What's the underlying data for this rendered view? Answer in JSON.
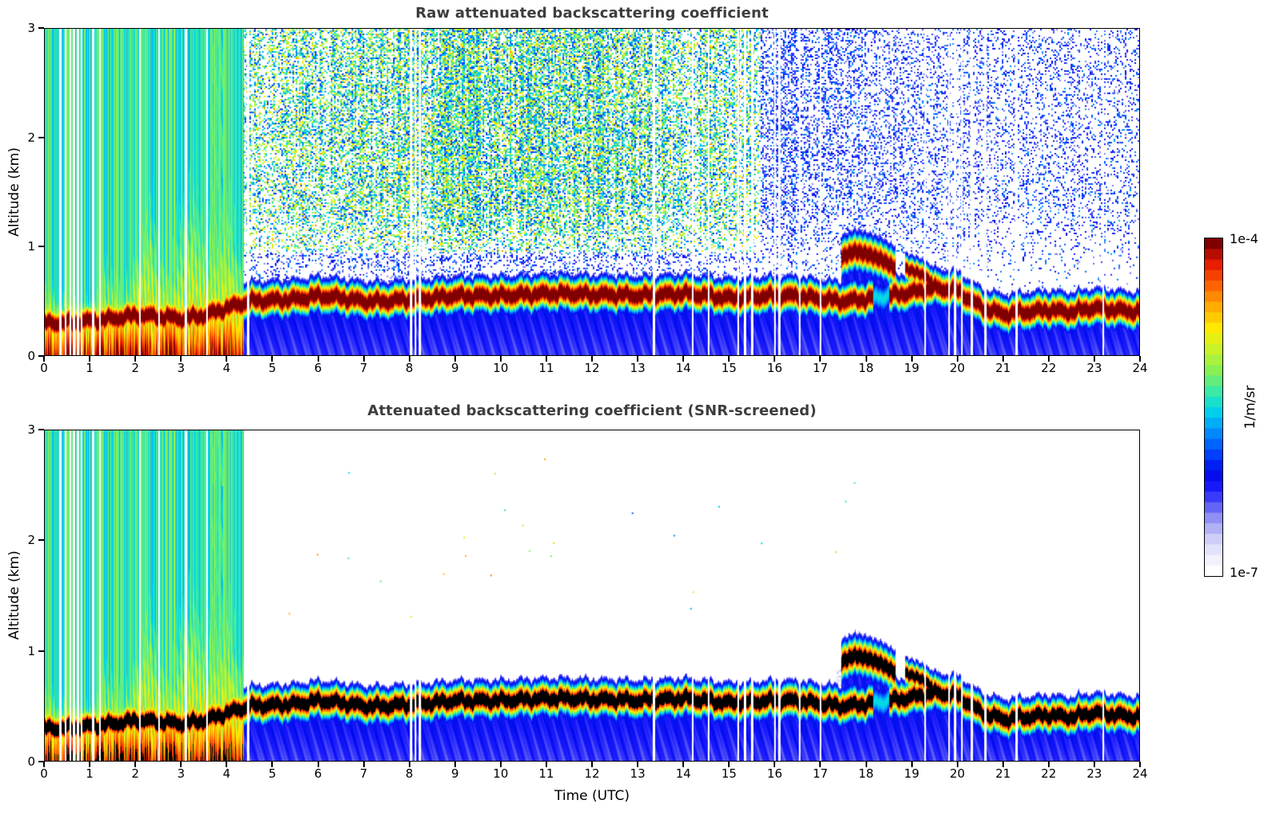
{
  "figure": {
    "top_panel": {
      "title": "Raw attenuated backscattering coefficient",
      "ylabel": "Altitude (km)"
    },
    "bottom_panel": {
      "title": "Attenuated backscattering coefficient (SNR-screened)",
      "ylabel": "Altitude (km)",
      "xlabel": "Time (UTC)"
    },
    "colorbar": {
      "max_label": "1e-4",
      "min_label": "1e-7",
      "unit": "1/m/sr"
    }
  },
  "chart_data": {
    "type": "heatmap",
    "panels": [
      {
        "id": "raw",
        "title": "Raw attenuated backscattering coefficient",
        "screened": false
      },
      {
        "id": "screened",
        "title": "Attenuated backscattering coefficient (SNR-screened)",
        "screened": true
      }
    ],
    "xlabel": "Time (UTC)",
    "ylabel": "Altitude (km)",
    "x_range": [
      0,
      24
    ],
    "y_range": [
      0,
      3
    ],
    "x_ticks": [
      0,
      1,
      2,
      3,
      4,
      5,
      6,
      7,
      8,
      9,
      10,
      11,
      12,
      13,
      14,
      15,
      16,
      17,
      18,
      19,
      20,
      21,
      22,
      23,
      24
    ],
    "y_ticks": [
      0,
      1,
      2,
      3
    ],
    "colorbar": {
      "min_value": 1e-07,
      "max_value": 0.0001,
      "unit": "1/m/sr",
      "steps": 32,
      "min_label": "1e-7",
      "max_label": "1e-4"
    },
    "colormap_stops": [
      [
        0.0,
        255,
        255,
        255
      ],
      [
        0.05,
        236,
        236,
        252
      ],
      [
        0.1,
        204,
        204,
        248
      ],
      [
        0.15,
        158,
        158,
        246
      ],
      [
        0.2,
        92,
        92,
        246
      ],
      [
        0.25,
        28,
        28,
        255
      ],
      [
        0.3,
        0,
        10,
        235
      ],
      [
        0.36,
        0,
        70,
        255
      ],
      [
        0.43,
        0,
        150,
        255
      ],
      [
        0.49,
        0,
        215,
        235
      ],
      [
        0.55,
        60,
        235,
        165
      ],
      [
        0.61,
        135,
        240,
        85
      ],
      [
        0.67,
        195,
        245,
        45
      ],
      [
        0.74,
        255,
        235,
        0
      ],
      [
        0.81,
        255,
        170,
        0
      ],
      [
        0.88,
        255,
        90,
        0
      ],
      [
        0.94,
        232,
        25,
        0
      ],
      [
        1.0,
        128,
        0,
        0
      ]
    ],
    "features": {
      "band_center_km_step_h": 0.5,
      "band_center_km": [
        0.3,
        0.3,
        0.32,
        0.34,
        0.37,
        0.36,
        0.34,
        0.37,
        0.44,
        0.5,
        0.51,
        0.52,
        0.55,
        0.53,
        0.5,
        0.5,
        0.52,
        0.53,
        0.55,
        0.55,
        0.55,
        0.56,
        0.57,
        0.57,
        0.56,
        0.56,
        0.55,
        0.56,
        0.57,
        0.55,
        0.53,
        0.54,
        0.55,
        0.55,
        0.52,
        0.5,
        0.52,
        0.55,
        0.58,
        0.62,
        0.6,
        0.45,
        0.38,
        0.4,
        0.42,
        0.4,
        0.44,
        0.42,
        0.4
      ],
      "band_halfwidth_km": 0.1,
      "band_weak_window_utc": [
        18.15,
        18.5
      ],
      "plume_top_km_step_h": 0.25,
      "plume_top_km": [
        1.35,
        0.95,
        1.15,
        0.75,
        0.85,
        1.65,
        1.35,
        1.05,
        2.05,
        2.65,
        1.95,
        1.6,
        2.35,
        2.9,
        2.25,
        2.25,
        2.6,
        1.85,
        0.9
      ],
      "plume_end_utc": 4.35,
      "green_column": {
        "t_start": 3.62,
        "t_end": 3.9,
        "top_km": 3.0,
        "screened_bottom_km": 2.5
      },
      "elevated_layers": [
        {
          "t_start": 17.45,
          "t_end": 18.65,
          "center_km": [
            0.9,
            0.96,
            0.93,
            0.88,
            0.8
          ],
          "halfwidth_km": 0.11,
          "peak": 1.1
        },
        {
          "t_start": 18.85,
          "t_end": 19.45,
          "center_km": [
            0.8,
            0.76,
            0.68
          ],
          "halfwidth_km": 0.08,
          "peak": 1.08
        }
      ],
      "lavender_haze": {
        "t_start": 17.35,
        "t_end": 17.85,
        "alt_min_km": 0.58,
        "alt_max_km": 0.84
      },
      "data_gaps_utc": [
        0.33,
        0.45,
        0.55,
        0.63,
        0.72,
        0.8,
        1.05,
        1.2,
        2.08,
        2.5,
        3.08,
        3.55,
        4.45,
        8.02,
        8.12,
        8.22,
        13.35,
        14.2,
        14.55,
        15.2,
        15.35,
        15.5,
        16.0,
        16.1,
        16.55,
        17.0,
        19.3,
        19.82,
        19.95,
        20.1,
        20.32,
        20.62,
        21.3,
        23.2
      ],
      "noise": {
        "density_night": 0.2,
        "density_day_extra": 0.52,
        "day_peak_utc": 10.0,
        "day_sigma_h": 4.2
      }
    }
  },
  "layout_text": {
    "note": ""
  }
}
